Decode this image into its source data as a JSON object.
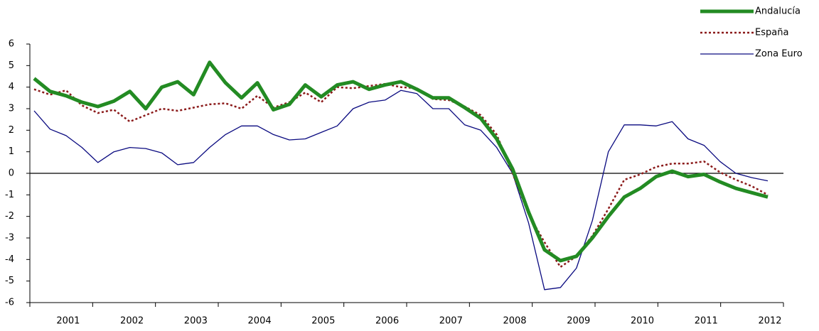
{
  "chart_data": {
    "type": "line",
    "categories": [
      null,
      null,
      "2001",
      null,
      null,
      null,
      "2002",
      null,
      null,
      null,
      "2003",
      null,
      null,
      null,
      "2004",
      null,
      null,
      null,
      "2005",
      null,
      null,
      null,
      "2006",
      null,
      null,
      null,
      "2007",
      null,
      null,
      null,
      "2008",
      null,
      null,
      null,
      "2009",
      null,
      null,
      null,
      "2010",
      null,
      null,
      null,
      "2011",
      null,
      null,
      null,
      "2012"
    ],
    "series": [
      {
        "name": "Andalucía",
        "color": "#238b23",
        "values": [
          4.4,
          3.8,
          3.6,
          3.3,
          3.1,
          3.35,
          3.8,
          3.0,
          4.0,
          4.25,
          3.65,
          5.15,
          4.2,
          3.5,
          4.2,
          2.95,
          3.2,
          4.1,
          3.55,
          4.1,
          4.25,
          3.9,
          4.1,
          4.25,
          3.9,
          3.5,
          3.5,
          3.05,
          2.55,
          1.6,
          0.2,
          -1.8,
          -3.55,
          -4.05,
          -3.85,
          -3.0,
          -2.0,
          -1.1,
          -0.7,
          -0.15,
          0.1,
          -0.15,
          -0.05,
          -0.4,
          -0.7,
          -0.9,
          -1.1
        ]
      },
      {
        "name": "España",
        "color": "#8b1a1a",
        "values": [
          3.9,
          3.65,
          3.85,
          3.15,
          2.8,
          2.95,
          2.4,
          2.7,
          3.0,
          2.9,
          3.05,
          3.2,
          3.25,
          3.0,
          3.6,
          3.05,
          3.3,
          3.75,
          3.3,
          4.0,
          3.95,
          4.05,
          4.15,
          4.0,
          3.95,
          3.45,
          3.4,
          3.1,
          2.7,
          1.8,
          0.0,
          -1.9,
          -3.2,
          -4.35,
          -3.85,
          -2.9,
          -1.65,
          -0.3,
          -0.05,
          0.3,
          0.45,
          0.45,
          0.55,
          0.05,
          -0.3,
          -0.6,
          -1.0
        ]
      },
      {
        "name": "Zona Euro",
        "color": "#0a0a80",
        "values": [
          2.9,
          2.05,
          1.75,
          1.2,
          0.5,
          1.0,
          1.2,
          1.15,
          0.95,
          0.4,
          0.5,
          1.2,
          1.8,
          2.2,
          2.2,
          1.8,
          1.55,
          1.6,
          1.9,
          2.2,
          3.0,
          3.3,
          3.4,
          3.85,
          3.7,
          3.0,
          3.0,
          2.25,
          2.0,
          1.2,
          0.0,
          -2.3,
          -5.4,
          -5.3,
          -4.4,
          -2.2,
          1.0,
          2.25,
          2.25,
          2.2,
          2.4,
          1.6,
          1.3,
          0.55,
          0.0,
          -0.2,
          -0.35
        ]
      }
    ],
    "ylim": [
      -6,
      6
    ],
    "yticks": [
      -6,
      -5,
      -4,
      -3,
      -2,
      -1,
      0,
      1,
      2,
      3,
      4,
      5,
      6
    ],
    "grid": false,
    "legend": "top-right"
  }
}
